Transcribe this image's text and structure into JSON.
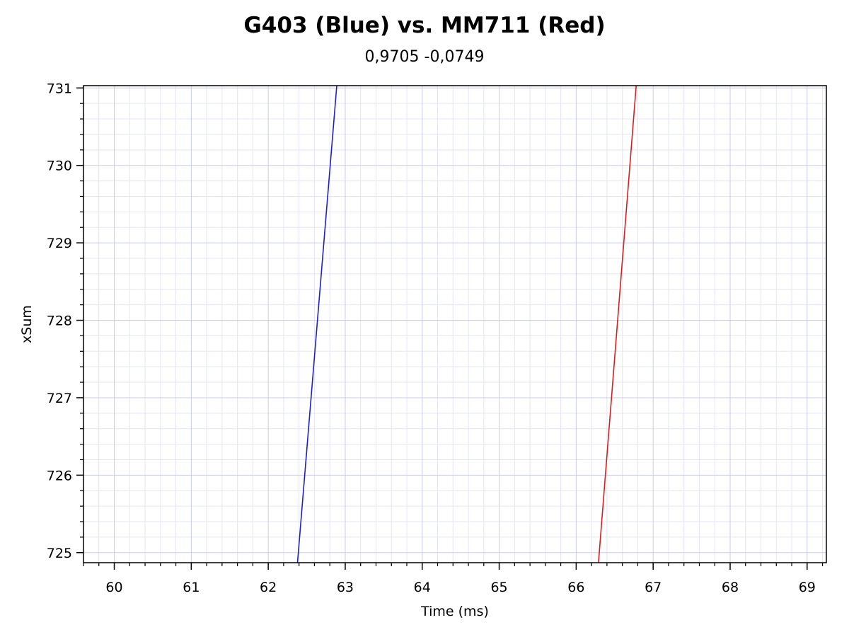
{
  "chart_data": {
    "type": "line",
    "title": "G403 (Blue) vs. MM711 (Red)",
    "subtitle": "0,9705 -0,0749",
    "xlabel": "Time (ms)",
    "ylabel": "xSum",
    "xlim": [
      59.6,
      69.25
    ],
    "ylim": [
      724.87,
      731.03
    ],
    "x_ticks": [
      60,
      61,
      62,
      63,
      64,
      65,
      66,
      67,
      68,
      69
    ],
    "y_ticks": [
      725,
      726,
      727,
      728,
      729,
      730,
      731
    ],
    "grid": true,
    "legend": "none",
    "series": [
      {
        "color": "#2020c8",
        "x": [
          62.38,
          62.89
        ],
        "y": [
          724.87,
          731.03
        ]
      },
      {
        "color": "#d42020",
        "x": [
          66.29,
          66.78
        ],
        "y": [
          724.87,
          731.03
        ]
      }
    ]
  }
}
